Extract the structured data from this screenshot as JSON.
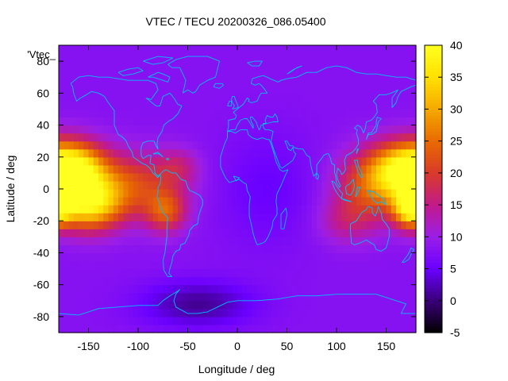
{
  "chart_data": {
    "type": "heatmap",
    "title": "VTEC / TECU 20200326_086.05400",
    "xlabel": "Longitude / deg",
    "ylabel": "Latitude / deg",
    "legend_label": "'Vtec_",
    "xlim": [
      -180,
      180
    ],
    "ylim": [
      -90,
      90
    ],
    "xticks": [
      -150,
      -100,
      -50,
      0,
      50,
      100,
      150
    ],
    "yticks": [
      -80,
      -60,
      -40,
      -20,
      0,
      20,
      40,
      60,
      80
    ],
    "colorbar": {
      "range": [
        -5,
        40
      ],
      "ticks": [
        -5,
        0,
        5,
        10,
        15,
        20,
        25,
        30,
        35,
        40
      ],
      "palette": [
        "#000000",
        "#3a0078",
        "#6a00ff",
        "#9a1ee8",
        "#c21a8a",
        "#d83a2a",
        "#e86a00",
        "#f5a800",
        "#ffe000",
        "#ffff20"
      ]
    },
    "background_value": 8,
    "hotspots": [
      {
        "lon": -165,
        "lat": 12,
        "value": 37,
        "sigma_lon": 22,
        "sigma_lat": 12
      },
      {
        "lon": -150,
        "lat": -10,
        "value": 32,
        "sigma_lon": 22,
        "sigma_lat": 11
      },
      {
        "lon": -110,
        "lat": 2,
        "value": 22,
        "sigma_lon": 35,
        "sigma_lat": 14
      },
      {
        "lon": -72,
        "lat": -14,
        "value": 21,
        "sigma_lon": 14,
        "sigma_lat": 9
      },
      {
        "lon": -60,
        "lat": 14,
        "value": 14,
        "sigma_lon": 15,
        "sigma_lat": 8
      },
      {
        "lon": 165,
        "lat": 12,
        "value": 30,
        "sigma_lon": 22,
        "sigma_lat": 12
      },
      {
        "lon": 175,
        "lat": -12,
        "value": 34,
        "sigma_lon": 12,
        "sigma_lat": 8
      },
      {
        "lon": 135,
        "lat": 2,
        "value": 22,
        "sigma_lon": 25,
        "sigma_lat": 15
      },
      {
        "lon": 110,
        "lat": -20,
        "value": 14,
        "sigma_lon": 20,
        "sigma_lat": 10
      },
      {
        "lon": -40,
        "lat": -72,
        "value": 1,
        "sigma_lon": 40,
        "sigma_lat": 10
      },
      {
        "lon": 30,
        "lat": 0,
        "value": 5,
        "sigma_lon": 35,
        "sigma_lat": 25
      }
    ],
    "coastline_color": "#00c0ff"
  }
}
